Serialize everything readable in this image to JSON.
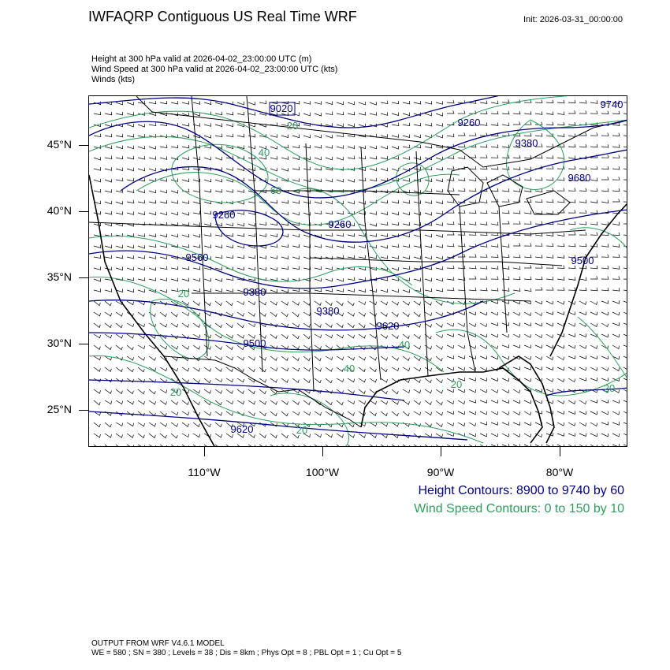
{
  "header": {
    "title": "IWFAQRP Contiguous US Real Time WRF",
    "init": "Init: 2026-03-31_00:00:00"
  },
  "fields": [
    "Height at 300 hPa valid at 2026-04-02_23:00:00 UTC   (m)",
    "Wind Speed at 300 hPa valid at 2026-04-02_23:00:00 UTC   (kts)",
    "Winds   (kts)"
  ],
  "axes": {
    "lat_labels": [
      "45°N",
      "40°N",
      "35°N",
      "30°N",
      "25°N"
    ],
    "lon_labels": [
      "110°W",
      "100°W",
      "90°W",
      "80°W"
    ]
  },
  "map_labels": {
    "height": [
      "9020",
      "9260",
      "9380",
      "9500",
      "9380",
      "9560",
      "9260",
      "9380",
      "9620",
      "9740",
      "9260",
      "9680",
      "9500",
      "9620"
    ],
    "wind": [
      "20",
      "40",
      "60",
      "20",
      "20",
      "40",
      "20",
      "20",
      "20",
      "40"
    ]
  },
  "legend": {
    "height": "Height Contours: 8900 to 9740 by 60",
    "wind": "Wind Speed Contours: 0 to 150 by 10"
  },
  "footer": {
    "line1": "OUTPUT FROM WRF V4.6.1 MODEL",
    "line2": "WE = 580 ; SN = 380 ; Levels = 38 ; Dis = 8km ; Phys Opt = 8 ; PBL Opt = 1 ; Cu Opt = 5"
  },
  "colors": {
    "height_contour": "#000080",
    "wind_contour": "#2e9e5e",
    "borders": "#000000",
    "barbs": "#000000"
  }
}
